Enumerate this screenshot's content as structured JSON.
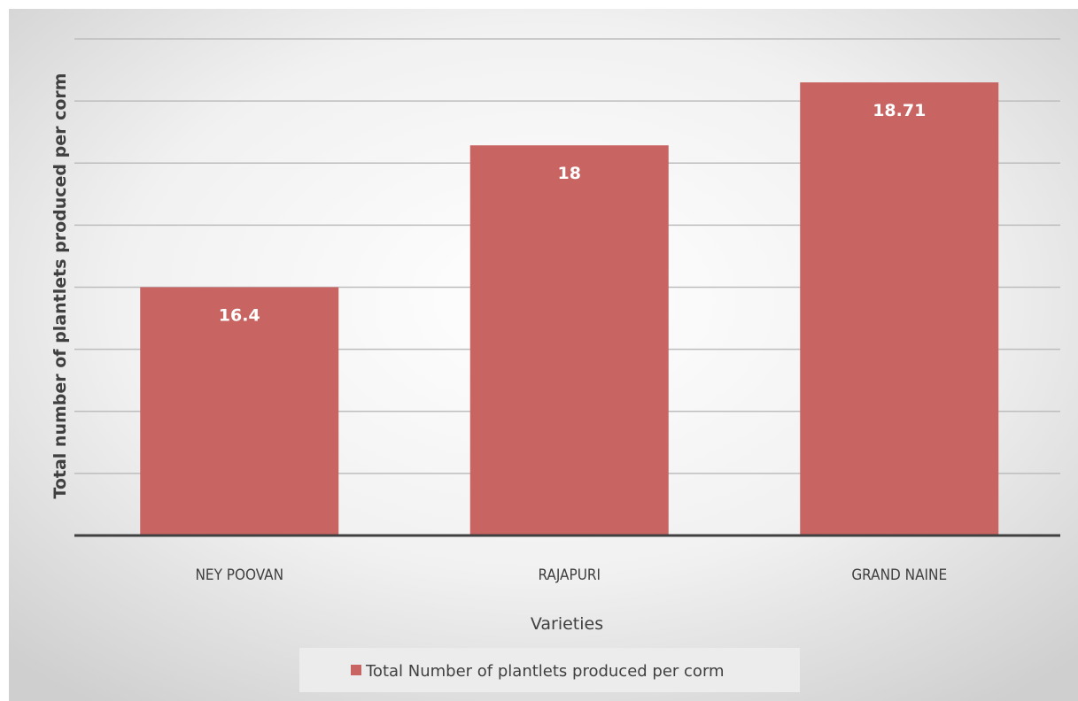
{
  "chart_data": {
    "type": "bar",
    "categories": [
      "NEY POOVAN",
      "RAJAPURI",
      "GRAND NAINE"
    ],
    "series": [
      {
        "name": "Total Number of plantlets produced per corm",
        "values": [
          16.4,
          18,
          18.71
        ],
        "data_labels": [
          "16.4",
          "18",
          "18.71"
        ]
      }
    ],
    "title": "",
    "xlabel": "Varieties",
    "ylabel": "Total number of plantlets produced per corm",
    "ylim": [
      13.6,
      19.2
    ],
    "gridline_step": 0.7,
    "y_tick_labels_shown": false,
    "grid": true,
    "legend": "bottom",
    "colors": {
      "bar": "#c86462",
      "background_light": "#ffffff",
      "background_dark": "#cfcfcf",
      "gridline": "#bdbdbd",
      "axis": "#404040",
      "legend_box": "#ececec"
    }
  }
}
